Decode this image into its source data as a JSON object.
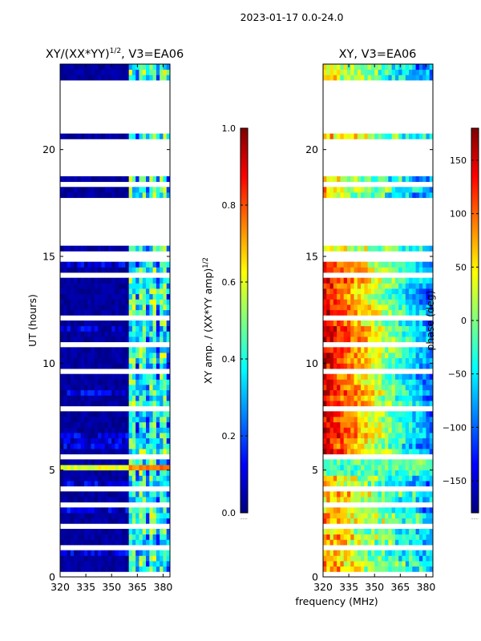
{
  "suptitle": "2023-01-17 0.0-24.0",
  "xlabel_shared": "frequency (MHz)",
  "colors": {
    "jet": [
      "#00007f",
      "#0000ff",
      "#007fff",
      "#00ffff",
      "#7fff7f",
      "#ffff00",
      "#ff7f00",
      "#ff0000",
      "#7f0000"
    ],
    "bad_data": "#ffffff"
  },
  "chart_data": [
    {
      "type": "heatmap",
      "title_main": "XY/(XX*YY)",
      "title_exp": "1/2",
      "title_suffix": ", V3=EA06",
      "xlabel": "",
      "ylabel": "UT (hours)",
      "xlim": [
        320,
        384
      ],
      "ylim": [
        0,
        24
      ],
      "xticks": [
        320,
        335,
        350,
        365,
        380
      ],
      "yticks": [
        0,
        5,
        10,
        15,
        20
      ],
      "colorbar": {
        "label_main": "XY amp. / (XX*YY amp)",
        "label_exp": "1/2",
        "range": [
          0.0,
          1.0
        ],
        "ticks": [
          "0.0",
          "0.2",
          "0.4",
          "0.6",
          "0.8",
          "1.0"
        ],
        "offset_text": "......"
      },
      "rfi_free_band_mhz": [
        320,
        361
      ],
      "rfi_band_mhz": [
        361,
        384
      ],
      "typical_value_clean": 0.0,
      "typical_value_rfi": 0.4,
      "strong_rfi_hours": [
        4.9,
        5.25
      ],
      "strong_rfi_value": 0.8
    },
    {
      "type": "heatmap",
      "title": "XY, V3=EA06",
      "xlabel": "frequency (MHz)",
      "ylabel": "",
      "xlim": [
        320,
        384
      ],
      "ylim": [
        0,
        24
      ],
      "xticks": [
        320,
        335,
        350,
        365,
        380
      ],
      "yticks": [
        0,
        5,
        10,
        15,
        20
      ],
      "colorbar": {
        "label": "phase (deg)",
        "range": [
          -180,
          180
        ],
        "ticks": [
          "−150",
          "−100",
          "−50",
          "0",
          "50",
          "100",
          "150"
        ],
        "offset_text": "......"
      },
      "phase_slope_note": "phase gradient across band",
      "phase_low_freq_deg": 150,
      "phase_high_freq_deg": -100
    }
  ],
  "flagged_hour_bands": [
    [
      0.0,
      0.15
    ],
    [
      0.75,
      0.85
    ],
    [
      1.35,
      1.45
    ],
    [
      1.9,
      2.0
    ],
    [
      2.3,
      2.4
    ],
    [
      2.75,
      2.85
    ],
    [
      3.2,
      3.45
    ],
    [
      3.75,
      3.85
    ],
    [
      4.1,
      4.2
    ],
    [
      4.4,
      4.5
    ],
    [
      4.75,
      4.8
    ],
    [
      5.55,
      5.65
    ],
    [
      6.0,
      6.1
    ],
    [
      6.4,
      6.5
    ],
    [
      6.9,
      7.0
    ],
    [
      7.4,
      7.5
    ],
    [
      7.8,
      7.95
    ],
    [
      8.5,
      8.6
    ],
    [
      9.0,
      9.1
    ],
    [
      9.6,
      9.7
    ],
    [
      10.3,
      10.35
    ],
    [
      10.85,
      10.95
    ],
    [
      11.5,
      11.6
    ],
    [
      12.05,
      12.15
    ],
    [
      12.7,
      12.8
    ],
    [
      13.2,
      13.3
    ],
    [
      13.65,
      13.75
    ],
    [
      14.1,
      14.2
    ],
    [
      14.5,
      14.6
    ],
    [
      14.8,
      14.9
    ],
    [
      15.0,
      15.2
    ],
    [
      15.45,
      15.5
    ],
    [
      15.6,
      17.8
    ],
    [
      18.05,
      18.1
    ],
    [
      18.35,
      18.5
    ],
    [
      18.8,
      20.6
    ],
    [
      20.85,
      20.9
    ],
    [
      21.05,
      21.15
    ],
    [
      21.3,
      23.3
    ],
    [
      23.45,
      23.55
    ],
    [
      23.7,
      23.75
    ],
    [
      24.0,
      24.0
    ]
  ]
}
